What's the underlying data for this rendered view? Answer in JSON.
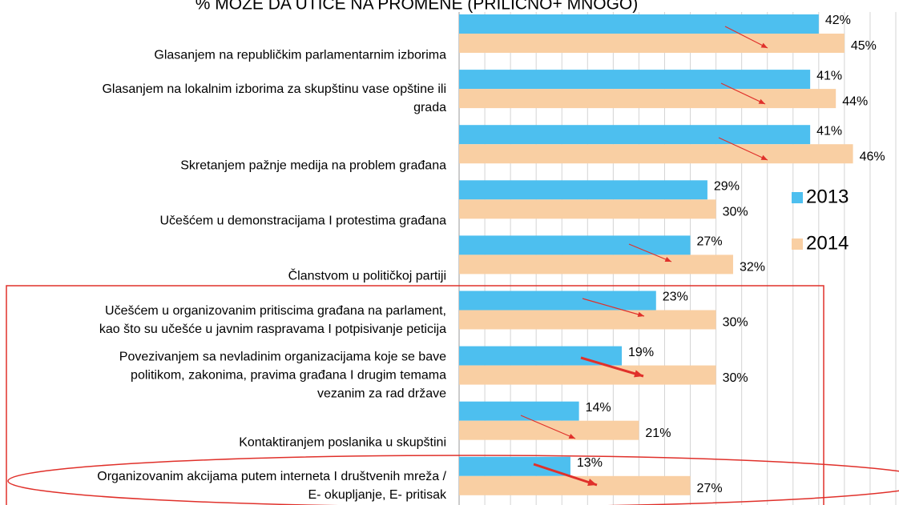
{
  "chart_data": {
    "type": "bar",
    "orientation": "horizontal",
    "title": "% MOŽE DA UTIČE NA PROMENE (PRILIČNO+ MNOGO)",
    "categories": [
      "Glasanjem na republičkim parlamentarnim izborima",
      "Glasanjem na lokalnim izborima za skupštinu vase opštine ili\ngrada",
      "Skretanjem pažnje medija na problem građana",
      "Učešćem u demonstracijama I protestima građana",
      "Članstvom u političkoj partiji",
      "Učešćem u organizovanim pritiscima građana na parlament,\nkao što su učešće u javnim raspravama I potpisivanje peticija",
      "Povezivanjem sa nevladinim organizacijama koje se bave\npolitikom, zakonima, pravima građana I drugim temama\nvezanim za rad države",
      "Kontaktiranjem poslanika u skupštini",
      "Organizovanim akcijama putem interneta I društvenih mreža /\nE- okupljanje, E- pritisak"
    ],
    "series": [
      {
        "name": "2013",
        "color": "#4dbfef",
        "values": [
          42,
          41,
          41,
          29,
          27,
          23,
          19,
          14,
          13
        ],
        "value_labels": [
          "42%",
          "41%",
          "41%",
          "29%",
          "27%",
          "23%",
          "19%",
          "14%",
          "13%"
        ]
      },
      {
        "name": "2014",
        "color": "#f9cfa3",
        "values": [
          45,
          44,
          46,
          30,
          32,
          30,
          30,
          21,
          27
        ],
        "value_labels": [
          "45%",
          "44%",
          "46%",
          "30%",
          "32%",
          "30%",
          "30%",
          "21%",
          "27%"
        ]
      }
    ],
    "xlim": [
      0,
      51
    ],
    "xticks": [
      0,
      3,
      6,
      9,
      12,
      15,
      18,
      21,
      24,
      27,
      30,
      33,
      36,
      39,
      42,
      45,
      48,
      51
    ],
    "grid": true,
    "legend": "right"
  }
}
